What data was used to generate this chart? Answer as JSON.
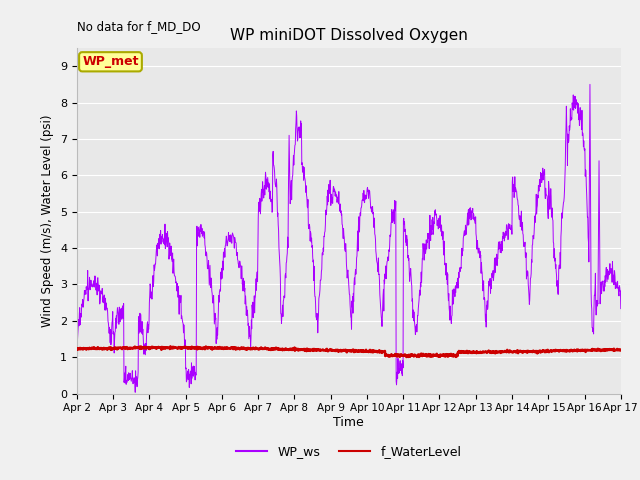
{
  "title": "WP miniDOT Dissolved Oxygen",
  "top_left_text": "No data for f_MD_DO",
  "xlabel": "Time",
  "ylabel": "Wind Speed (m/s), Water Level (psi)",
  "ylim": [
    0.0,
    9.5
  ],
  "yticks": [
    0.0,
    1.0,
    2.0,
    3.0,
    4.0,
    5.0,
    6.0,
    7.0,
    8.0,
    9.0
  ],
  "legend_labels": [
    "WP_ws",
    "f_WaterLevel"
  ],
  "ws_color": "#aa00ff",
  "wl_color": "#cc0000",
  "wp_met_box_text": "WP_met",
  "wp_met_box_facecolor": "#ffff99",
  "wp_met_box_edgecolor": "#aaaa00",
  "wp_met_text_color": "#cc0000",
  "plot_bg_color": "#e8e8e8",
  "fig_bg_color": "#f0f0f0",
  "grid_color": "#ffffff",
  "xtick_labels": [
    "Apr 2",
    "Apr 3",
    "Apr 4",
    "Apr 5",
    "Apr 6",
    "Apr 7",
    "Apr 8",
    "Apr 9",
    "Apr 10",
    "Apr 11",
    "Apr 12",
    "Apr 13",
    "Apr 14",
    "Apr 15",
    "Apr 16",
    "Apr 17"
  ]
}
